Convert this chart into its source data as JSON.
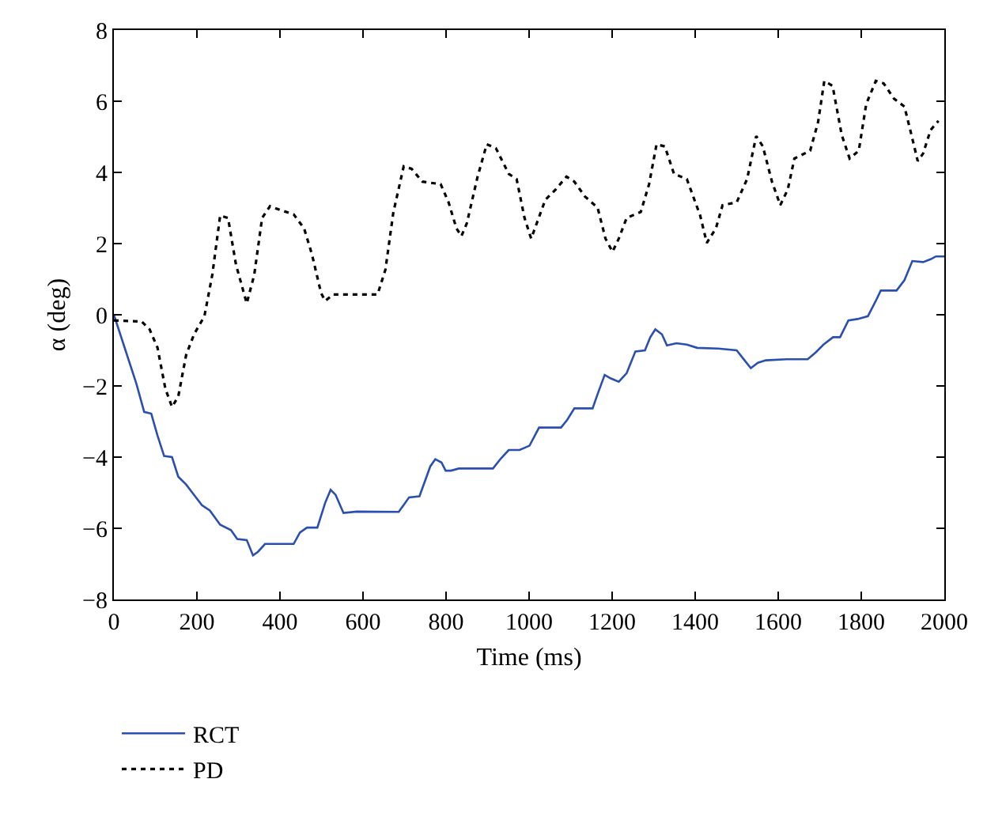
{
  "chart_data": {
    "type": "line",
    "xlabel": "Time (ms)",
    "ylabel": "α (deg)",
    "xlim": [
      0,
      2000
    ],
    "xticks": [
      0,
      200,
      400,
      600,
      800,
      1000,
      1200,
      1400,
      1600,
      1800,
      2000
    ],
    "ylim": [
      -8,
      8
    ],
    "yticks": [
      -8,
      -6,
      -4,
      -2,
      0,
      2,
      4,
      6,
      8
    ],
    "legend": "bottom",
    "marker": "none",
    "series": [
      {
        "name": "RCT",
        "color": "#2b4fb0",
        "line_style": "solid",
        "x": [
          0,
          54,
          73,
          90,
          105,
          121,
          140,
          155,
          174,
          193,
          212,
          231,
          256,
          282,
          297,
          320,
          335,
          347,
          364,
          433,
          448,
          465,
          490,
          509,
          522,
          534,
          553,
          585,
          686,
          711,
          736,
          762,
          774,
          789,
          799,
          812,
          831,
          913,
          932,
          951,
          977,
          1001,
          1024,
          1077,
          1092,
          1109,
          1153,
          1165,
          1182,
          1197,
          1216,
          1235,
          1256,
          1279,
          1292,
          1304,
          1320,
          1332,
          1355,
          1380,
          1405,
          1456,
          1500,
          1519,
          1534,
          1551,
          1570,
          1620,
          1671,
          1690,
          1709,
          1732,
          1749,
          1769,
          1791,
          1816,
          1835,
          1847,
          1885,
          1904,
          1923,
          1949,
          1967,
          1980,
          2000
        ],
        "values": [
          0,
          -1.93,
          -2.73,
          -2.78,
          -3.39,
          -3.97,
          -4.0,
          -4.55,
          -4.77,
          -5.06,
          -5.35,
          -5.5,
          -5.9,
          -6.05,
          -6.3,
          -6.33,
          -6.76,
          -6.66,
          -6.44,
          -6.44,
          -6.12,
          -5.98,
          -5.98,
          -5.28,
          -4.92,
          -5.06,
          -5.57,
          -5.53,
          -5.54,
          -5.13,
          -5.1,
          -4.26,
          -4.06,
          -4.15,
          -4.38,
          -4.38,
          -4.32,
          -4.32,
          -4.04,
          -3.8,
          -3.8,
          -3.68,
          -3.17,
          -3.17,
          -2.95,
          -2.63,
          -2.63,
          -2.23,
          -1.69,
          -1.79,
          -1.88,
          -1.64,
          -1.03,
          -1.0,
          -0.63,
          -0.41,
          -0.55,
          -0.86,
          -0.8,
          -0.84,
          -0.93,
          -0.95,
          -1.0,
          -1.28,
          -1.5,
          -1.35,
          -1.28,
          -1.25,
          -1.25,
          -1.06,
          -0.84,
          -0.63,
          -0.63,
          -0.16,
          -0.12,
          -0.04,
          0.39,
          0.68,
          0.68,
          0.97,
          1.51,
          1.48,
          1.56,
          1.64,
          1.64
        ]
      },
      {
        "name": "PD",
        "color": "#000000",
        "line_style": "dotted",
        "x": [
          0,
          67,
          86,
          105,
          124,
          140,
          155,
          174,
          193,
          218,
          237,
          256,
          275,
          294,
          320,
          338,
          357,
          376,
          402,
          433,
          458,
          477,
          499,
          509,
          528,
          635,
          654,
          673,
          698,
          717,
          743,
          787,
          806,
          825,
          837,
          850,
          876,
          898,
          920,
          951,
          970,
          989,
          1005,
          1021,
          1039,
          1064,
          1090,
          1109,
          1134,
          1165,
          1184,
          1201,
          1216,
          1235,
          1269,
          1289,
          1307,
          1327,
          1349,
          1380,
          1412,
          1428,
          1450,
          1466,
          1500,
          1525,
          1547,
          1563,
          1585,
          1605,
          1623,
          1639,
          1677,
          1696,
          1711,
          1731,
          1753,
          1772,
          1794,
          1812,
          1835,
          1854,
          1879,
          1904,
          1921,
          1936,
          1949,
          1967,
          1986
        ],
        "values": [
          -0.16,
          -0.19,
          -0.41,
          -0.92,
          -2.08,
          -2.59,
          -2.3,
          -1.13,
          -0.55,
          -0.04,
          1.12,
          2.79,
          2.72,
          1.41,
          0.32,
          1.12,
          2.72,
          3.05,
          2.94,
          2.82,
          2.43,
          1.7,
          0.61,
          0.39,
          0.57,
          0.57,
          1.27,
          2.87,
          4.17,
          4.1,
          3.74,
          3.67,
          3.16,
          2.43,
          2.21,
          2.57,
          3.88,
          4.79,
          4.68,
          3.96,
          3.81,
          2.72,
          2.14,
          2.65,
          3.23,
          3.52,
          3.88,
          3.74,
          3.33,
          3.01,
          2.14,
          1.77,
          2.14,
          2.72,
          2.89,
          3.67,
          4.79,
          4.73,
          3.96,
          3.81,
          2.79,
          2.02,
          2.43,
          3.08,
          3.16,
          3.81,
          5.02,
          4.73,
          3.74,
          3.08,
          3.52,
          4.39,
          4.61,
          5.41,
          6.57,
          6.43,
          5.05,
          4.39,
          4.61,
          5.92,
          6.57,
          6.5,
          6.07,
          5.85,
          5.05,
          4.32,
          4.53,
          5.19,
          5.45
        ]
      }
    ]
  }
}
